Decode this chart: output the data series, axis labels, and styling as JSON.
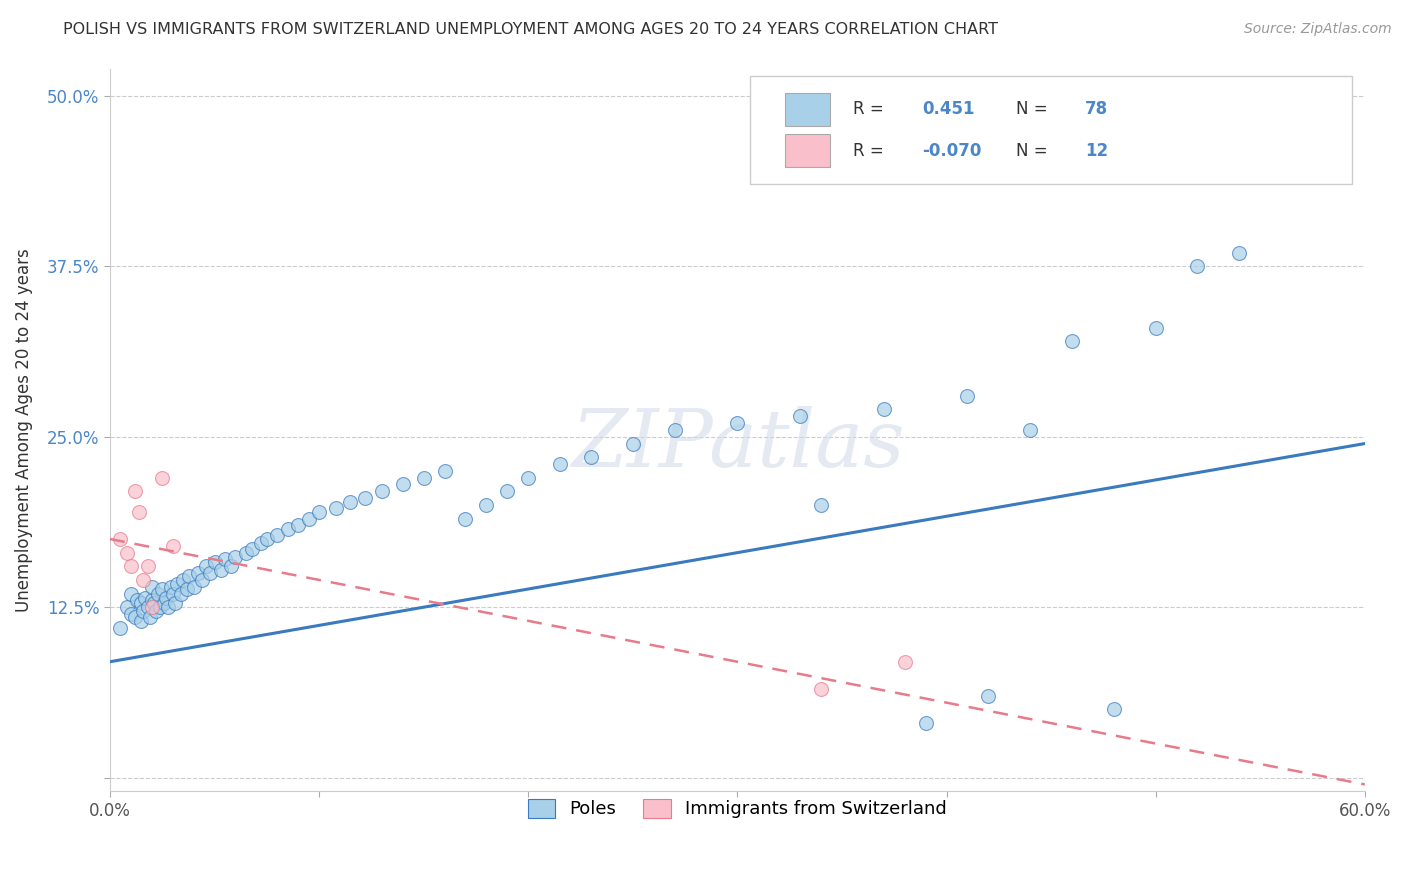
{
  "title": "POLISH VS IMMIGRANTS FROM SWITZERLAND UNEMPLOYMENT AMONG AGES 20 TO 24 YEARS CORRELATION CHART",
  "source": "Source: ZipAtlas.com",
  "ylabel": "Unemployment Among Ages 20 to 24 years",
  "watermark": "ZIPatlas",
  "r_blue": 0.451,
  "n_blue": 78,
  "r_pink": -0.07,
  "n_pink": 12,
  "blue_color": "#a8d0e8",
  "pink_color": "#f9c0cb",
  "blue_line_color": "#3a7abf",
  "pink_line_color": "#e87a8a",
  "xlim": [
    0.0,
    0.6
  ],
  "ylim": [
    -0.01,
    0.52
  ],
  "yticks": [
    0.0,
    0.125,
    0.25,
    0.375,
    0.5
  ],
  "ytick_labels": [
    "",
    "12.5%",
    "25.0%",
    "37.5%",
    "50.0%"
  ],
  "xticks": [
    0.0,
    0.1,
    0.2,
    0.3,
    0.4,
    0.5,
    0.6
  ],
  "xtick_labels": [
    "0.0%",
    "",
    "",
    "",
    "",
    "",
    "60.0%"
  ],
  "blue_x": [
    0.005,
    0.008,
    0.01,
    0.01,
    0.012,
    0.013,
    0.015,
    0.015,
    0.016,
    0.017,
    0.018,
    0.019,
    0.02,
    0.02,
    0.021,
    0.022,
    0.023,
    0.024,
    0.025,
    0.026,
    0.027,
    0.028,
    0.029,
    0.03,
    0.031,
    0.032,
    0.034,
    0.035,
    0.037,
    0.038,
    0.04,
    0.042,
    0.044,
    0.046,
    0.048,
    0.05,
    0.053,
    0.055,
    0.058,
    0.06,
    0.065,
    0.068,
    0.072,
    0.075,
    0.08,
    0.085,
    0.09,
    0.095,
    0.1,
    0.108,
    0.115,
    0.122,
    0.13,
    0.14,
    0.15,
    0.16,
    0.17,
    0.18,
    0.19,
    0.2,
    0.215,
    0.23,
    0.25,
    0.27,
    0.3,
    0.33,
    0.37,
    0.41,
    0.44,
    0.46,
    0.5,
    0.52,
    0.54,
    0.555,
    0.34,
    0.39,
    0.42,
    0.48
  ],
  "blue_y": [
    0.11,
    0.125,
    0.12,
    0.135,
    0.118,
    0.13,
    0.115,
    0.128,
    0.122,
    0.132,
    0.125,
    0.118,
    0.13,
    0.14,
    0.128,
    0.122,
    0.135,
    0.125,
    0.138,
    0.128,
    0.132,
    0.125,
    0.14,
    0.135,
    0.128,
    0.142,
    0.135,
    0.145,
    0.138,
    0.148,
    0.14,
    0.15,
    0.145,
    0.155,
    0.15,
    0.158,
    0.152,
    0.16,
    0.155,
    0.162,
    0.165,
    0.168,
    0.172,
    0.175,
    0.178,
    0.182,
    0.185,
    0.19,
    0.195,
    0.198,
    0.202,
    0.205,
    0.21,
    0.215,
    0.22,
    0.225,
    0.19,
    0.2,
    0.21,
    0.22,
    0.23,
    0.235,
    0.245,
    0.255,
    0.26,
    0.265,
    0.27,
    0.28,
    0.255,
    0.32,
    0.33,
    0.375,
    0.385,
    0.445,
    0.2,
    0.04,
    0.06,
    0.05
  ],
  "pink_x": [
    0.005,
    0.008,
    0.01,
    0.012,
    0.014,
    0.016,
    0.018,
    0.02,
    0.025,
    0.03,
    0.34,
    0.38
  ],
  "pink_y": [
    0.175,
    0.165,
    0.155,
    0.21,
    0.195,
    0.145,
    0.155,
    0.125,
    0.22,
    0.17,
    0.065,
    0.085
  ],
  "blue_line_x0": 0.0,
  "blue_line_y0": 0.085,
  "blue_line_x1": 0.6,
  "blue_line_y1": 0.245,
  "pink_line_x0": 0.0,
  "pink_line_y0": 0.175,
  "pink_line_x1": 0.6,
  "pink_line_y1": -0.005
}
